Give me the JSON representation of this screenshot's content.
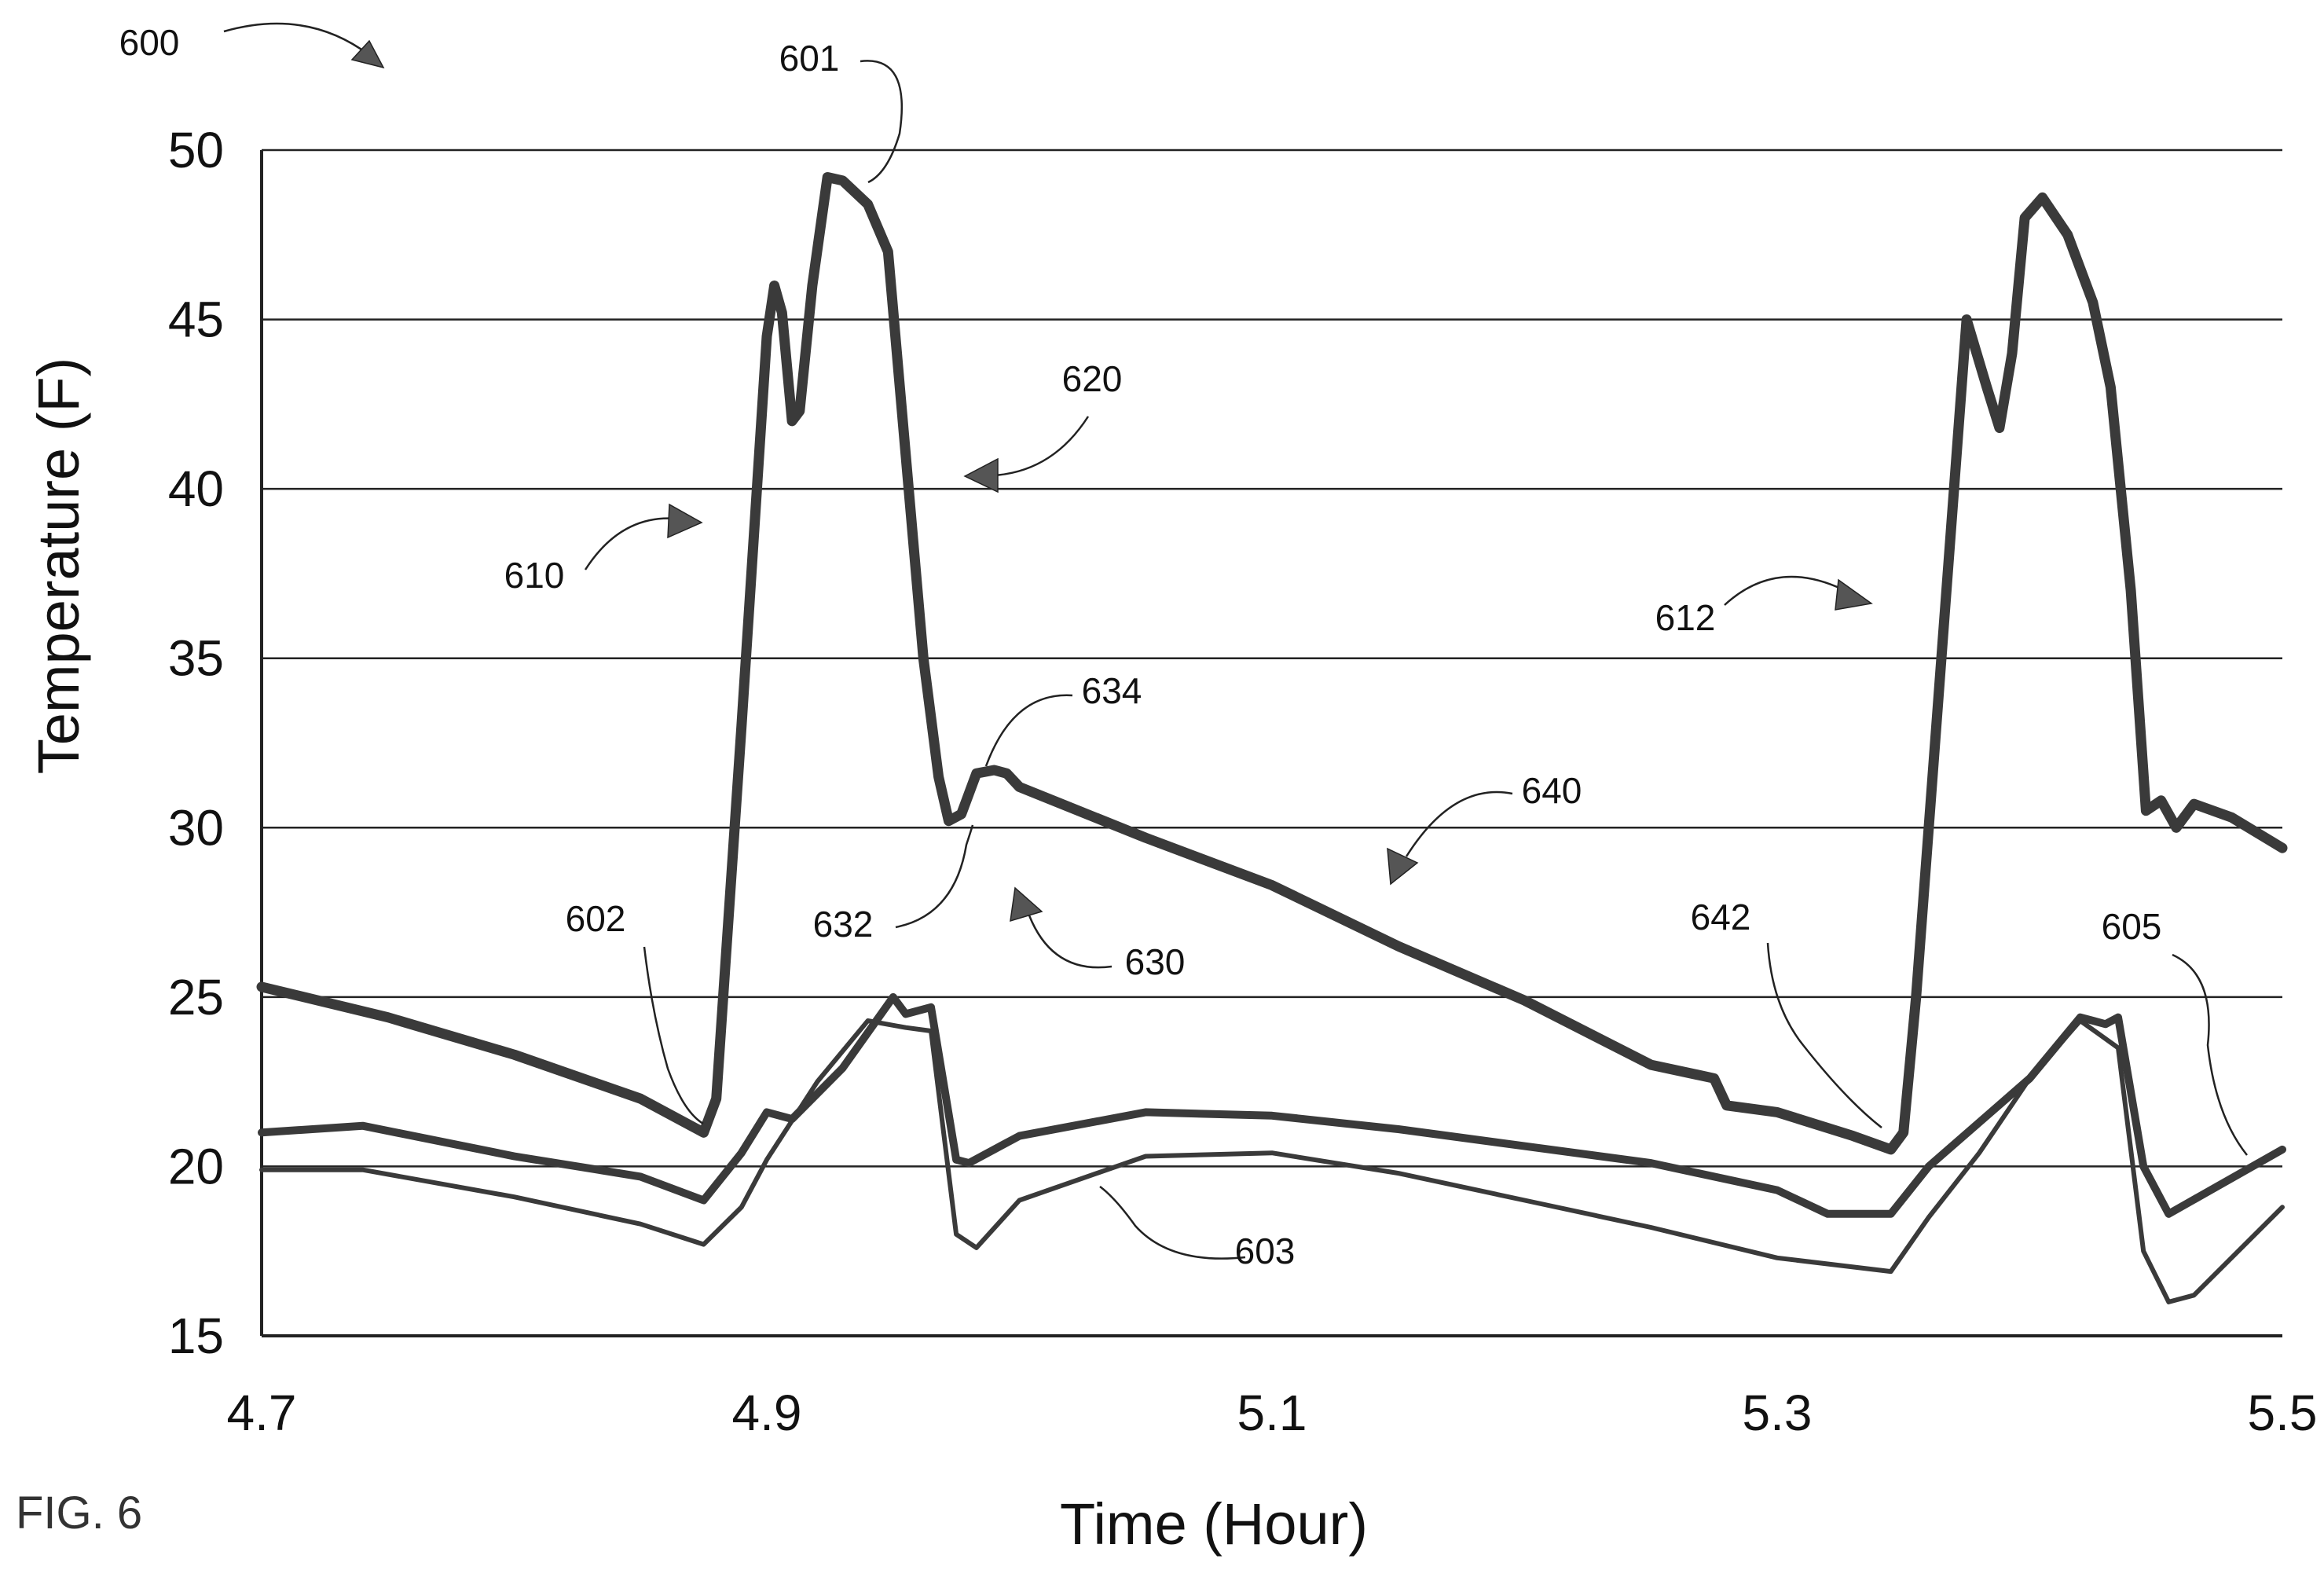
{
  "figure_label": "FIG. 6",
  "chart_data": {
    "type": "line",
    "xlabel": "Time (Hour)",
    "ylabel": "Temperature (F)",
    "xlim": [
      4.7,
      5.5
    ],
    "ylim": [
      15,
      50
    ],
    "x_ticks": [
      "4.7",
      "4.9",
      "5.1",
      "5.3",
      "5.5"
    ],
    "y_ticks": [
      "15",
      "20",
      "25",
      "30",
      "35",
      "40",
      "45",
      "50"
    ],
    "grid": "horizontal",
    "series": [
      {
        "points": [
          [
            4.7,
            25.3
          ],
          [
            4.75,
            24.4
          ],
          [
            4.8,
            23.3
          ],
          [
            4.85,
            22.0
          ],
          [
            4.87,
            21.2
          ],
          [
            4.875,
            21.0
          ],
          [
            4.88,
            22.0
          ],
          [
            4.89,
            33.0
          ],
          [
            4.9,
            44.5
          ],
          [
            4.903,
            46.0
          ],
          [
            4.906,
            45.2
          ],
          [
            4.91,
            42.0
          ],
          [
            4.913,
            42.3
          ],
          [
            4.918,
            46.0
          ],
          [
            4.924,
            49.2
          ],
          [
            4.93,
            49.1
          ],
          [
            4.94,
            48.4
          ],
          [
            4.948,
            47.0
          ],
          [
            4.955,
            41.0
          ],
          [
            4.962,
            35.0
          ],
          [
            4.968,
            31.5
          ],
          [
            4.972,
            30.2
          ],
          [
            4.977,
            30.4
          ],
          [
            4.983,
            31.6
          ],
          [
            4.99,
            31.7
          ],
          [
            4.995,
            31.6
          ],
          [
            5.0,
            31.2
          ],
          [
            5.05,
            29.7
          ],
          [
            5.1,
            28.3
          ],
          [
            5.15,
            26.5
          ],
          [
            5.2,
            24.9
          ],
          [
            5.25,
            23.0
          ],
          [
            5.275,
            22.6
          ],
          [
            5.28,
            21.8
          ],
          [
            5.3,
            21.6
          ],
          [
            5.33,
            20.9
          ],
          [
            5.345,
            20.5
          ],
          [
            5.35,
            21.0
          ],
          [
            5.355,
            25.0
          ],
          [
            5.37,
            40.0
          ],
          [
            5.375,
            45.0
          ],
          [
            5.383,
            43.0
          ],
          [
            5.388,
            41.8
          ],
          [
            5.393,
            44.0
          ],
          [
            5.398,
            48.0
          ],
          [
            5.405,
            48.6
          ],
          [
            5.415,
            47.5
          ],
          [
            5.425,
            45.5
          ],
          [
            5.432,
            43.0
          ],
          [
            5.44,
            37.0
          ],
          [
            5.446,
            30.5
          ],
          [
            5.452,
            30.8
          ],
          [
            5.458,
            30.0
          ],
          [
            5.465,
            30.7
          ],
          [
            5.48,
            30.3
          ],
          [
            5.5,
            29.4
          ]
        ]
      },
      {
        "points": [
          [
            4.7,
            21.0
          ],
          [
            4.74,
            21.2
          ],
          [
            4.8,
            20.3
          ],
          [
            4.85,
            19.7
          ],
          [
            4.875,
            19.0
          ],
          [
            4.89,
            20.4
          ],
          [
            4.9,
            21.6
          ],
          [
            4.91,
            21.4
          ],
          [
            4.93,
            22.9
          ],
          [
            4.95,
            25.0
          ],
          [
            4.955,
            24.5
          ],
          [
            4.965,
            24.7
          ],
          [
            4.975,
            20.2
          ],
          [
            4.98,
            20.1
          ],
          [
            5.0,
            20.9
          ],
          [
            5.05,
            21.6
          ],
          [
            5.1,
            21.5
          ],
          [
            5.15,
            21.1
          ],
          [
            5.2,
            20.6
          ],
          [
            5.25,
            20.1
          ],
          [
            5.3,
            19.3
          ],
          [
            5.32,
            18.6
          ],
          [
            5.345,
            18.6
          ],
          [
            5.36,
            20.0
          ],
          [
            5.38,
            21.3
          ],
          [
            5.4,
            22.6
          ],
          [
            5.42,
            24.4
          ],
          [
            5.43,
            24.2
          ],
          [
            5.435,
            24.4
          ],
          [
            5.445,
            20.0
          ],
          [
            5.455,
            18.6
          ],
          [
            5.5,
            20.5
          ]
        ]
      },
      {
        "points": [
          [
            4.7,
            19.9
          ],
          [
            4.74,
            19.9
          ],
          [
            4.8,
            19.1
          ],
          [
            4.85,
            18.3
          ],
          [
            4.875,
            17.7
          ],
          [
            4.89,
            18.8
          ],
          [
            4.9,
            20.2
          ],
          [
            4.92,
            22.5
          ],
          [
            4.94,
            24.3
          ],
          [
            4.955,
            24.1
          ],
          [
            4.965,
            24.0
          ],
          [
            4.975,
            18.0
          ],
          [
            4.983,
            17.6
          ],
          [
            5.0,
            19.0
          ],
          [
            5.05,
            20.3
          ],
          [
            5.1,
            20.4
          ],
          [
            5.15,
            19.8
          ],
          [
            5.2,
            19.0
          ],
          [
            5.25,
            18.2
          ],
          [
            5.3,
            17.3
          ],
          [
            5.345,
            16.9
          ],
          [
            5.36,
            18.5
          ],
          [
            5.38,
            20.4
          ],
          [
            5.4,
            22.6
          ],
          [
            5.42,
            24.3
          ],
          [
            5.435,
            23.5
          ],
          [
            5.445,
            17.5
          ],
          [
            5.455,
            16.0
          ],
          [
            5.465,
            16.2
          ],
          [
            5.5,
            18.8
          ]
        ]
      }
    ],
    "annotations": [
      "600",
      "601",
      "602",
      "603",
      "605",
      "610",
      "612",
      "620",
      "630",
      "632",
      "634",
      "640",
      "642"
    ]
  }
}
